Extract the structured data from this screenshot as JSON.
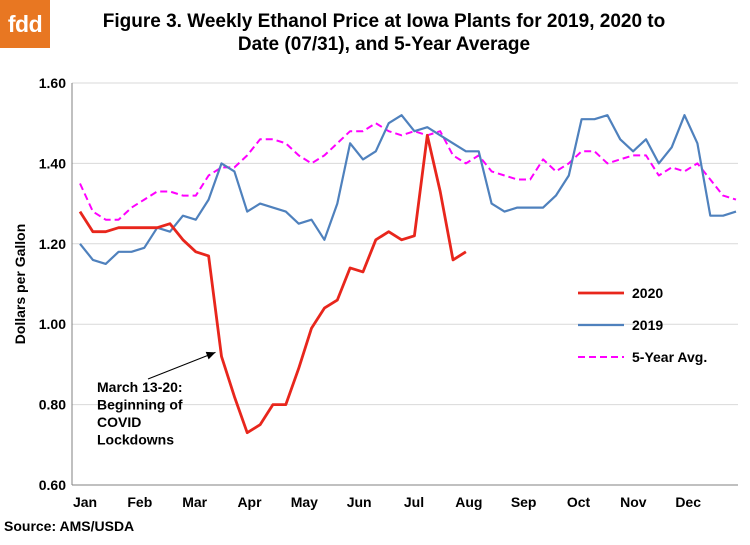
{
  "logo": {
    "text": "fdd",
    "color": "#e87722"
  },
  "title_lines": [
    "Figure 3. Weekly Ethanol Price at Iowa Plants for 2019, 2020 to",
    "Date (07/31), and 5-Year Average"
  ],
  "source": "Source: AMS/USDA",
  "chart_data": {
    "type": "line",
    "title": "Figure 3. Weekly Ethanol Price at Iowa Plants for 2019, 2020 to Date (07/31), and 5-Year Average",
    "xlabel": "",
    "ylabel": "Dollars per Gallon",
    "x_week_range": [
      1,
      52
    ],
    "ylim": [
      0.6,
      1.6
    ],
    "yticks": [
      "0.60",
      "0.80",
      "1.00",
      "1.20",
      "1.40",
      "1.60"
    ],
    "month_labels": [
      "Jan",
      "Feb",
      "Mar",
      "Apr",
      "May",
      "Jun",
      "Jul",
      "Aug",
      "Sep",
      "Oct",
      "Nov",
      "Dec"
    ],
    "grid": "horizontal",
    "legend_position": "right",
    "series": [
      {
        "name": "2020",
        "color": "#e8261c",
        "style": "solid",
        "x": [
          1,
          2,
          3,
          4,
          5,
          6,
          7,
          8,
          9,
          10,
          11,
          12,
          13,
          14,
          15,
          16,
          17,
          18,
          19,
          20,
          21,
          22,
          23,
          24,
          25,
          26,
          27,
          28,
          29,
          30,
          31
        ],
        "values": [
          1.28,
          1.23,
          1.23,
          1.24,
          1.24,
          1.24,
          1.24,
          1.25,
          1.21,
          1.18,
          1.17,
          0.92,
          0.82,
          0.73,
          0.75,
          0.8,
          0.8,
          0.89,
          0.99,
          1.04,
          1.06,
          1.14,
          1.13,
          1.21,
          1.23,
          1.21,
          1.22,
          1.47,
          1.33,
          1.16,
          1.18
        ]
      },
      {
        "name": "2019",
        "color": "#4f81bd",
        "style": "solid",
        "x": [
          1,
          2,
          3,
          4,
          5,
          6,
          7,
          8,
          9,
          10,
          11,
          12,
          13,
          14,
          15,
          16,
          17,
          18,
          19,
          20,
          21,
          22,
          23,
          24,
          25,
          26,
          27,
          28,
          29,
          30,
          31,
          32,
          33,
          34,
          35,
          36,
          37,
          38,
          39,
          40,
          41,
          42,
          43,
          44,
          45,
          46,
          47,
          48,
          49,
          50,
          51,
          52
        ],
        "values": [
          1.2,
          1.16,
          1.15,
          1.18,
          1.18,
          1.19,
          1.24,
          1.23,
          1.27,
          1.26,
          1.31,
          1.4,
          1.38,
          1.28,
          1.3,
          1.29,
          1.28,
          1.25,
          1.26,
          1.21,
          1.3,
          1.45,
          1.41,
          1.43,
          1.5,
          1.52,
          1.48,
          1.49,
          1.47,
          1.45,
          1.43,
          1.43,
          1.3,
          1.28,
          1.29,
          1.29,
          1.29,
          1.32,
          1.37,
          1.51,
          1.51,
          1.52,
          1.46,
          1.43,
          1.46,
          1.4,
          1.44,
          1.52,
          1.45,
          1.27,
          1.27,
          1.28
        ]
      },
      {
        "name": "5-Year Avg.",
        "color": "#ff00ff",
        "style": "dashed",
        "x": [
          1,
          2,
          3,
          4,
          5,
          6,
          7,
          8,
          9,
          10,
          11,
          12,
          13,
          14,
          15,
          16,
          17,
          18,
          19,
          20,
          21,
          22,
          23,
          24,
          25,
          26,
          27,
          28,
          29,
          30,
          31,
          32,
          33,
          34,
          35,
          36,
          37,
          38,
          39,
          40,
          41,
          42,
          43,
          44,
          45,
          46,
          47,
          48,
          49,
          50,
          51,
          52
        ],
        "values": [
          1.35,
          1.28,
          1.26,
          1.26,
          1.29,
          1.31,
          1.33,
          1.33,
          1.32,
          1.32,
          1.37,
          1.39,
          1.39,
          1.42,
          1.46,
          1.46,
          1.45,
          1.42,
          1.4,
          1.42,
          1.45,
          1.48,
          1.48,
          1.5,
          1.48,
          1.47,
          1.48,
          1.47,
          1.48,
          1.42,
          1.4,
          1.42,
          1.38,
          1.37,
          1.36,
          1.36,
          1.41,
          1.38,
          1.4,
          1.43,
          1.43,
          1.4,
          1.41,
          1.42,
          1.42,
          1.37,
          1.39,
          1.38,
          1.4,
          1.36,
          1.32,
          1.31
        ]
      }
    ],
    "annotation": {
      "lines": [
        "March 13-20:",
        "Beginning of",
        "COVID",
        "Lockdowns"
      ],
      "points_to": {
        "series": "2020",
        "x": 12,
        "y": 0.92
      }
    }
  }
}
